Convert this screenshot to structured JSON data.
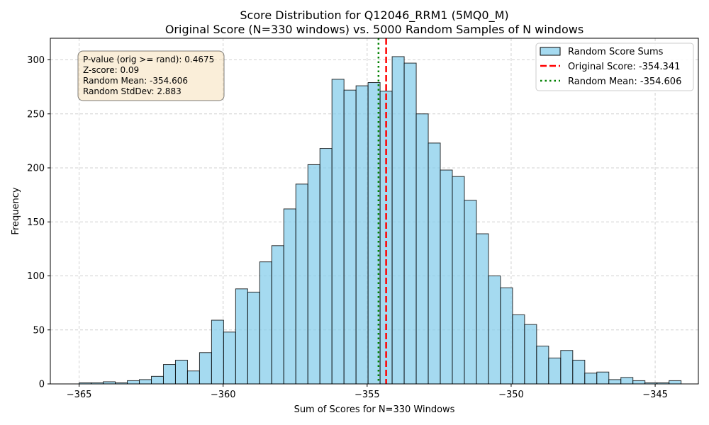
{
  "chart_data": {
    "type": "bar",
    "title": "Score Distribution for Q12046_RRM1 (5MQ0_M)",
    "subtitle": "Original Score (N=330 windows) vs. 5000 Random Samples of N windows",
    "xlabel": "Sum of Scores for N=330 Windows",
    "ylabel": "Frequency",
    "xlim": [
      -366.0,
      -343.5
    ],
    "ylim": [
      0,
      320
    ],
    "xticks": [
      -365,
      -360,
      -355,
      -350,
      -345
    ],
    "xtick_labels": [
      "−365",
      "−360",
      "−355",
      "−350",
      "−345"
    ],
    "yticks": [
      0,
      50,
      100,
      150,
      200,
      250,
      300
    ],
    "ytick_labels": [
      "0",
      "50",
      "100",
      "150",
      "200",
      "250",
      "300"
    ],
    "grid": true,
    "legend_position": "top-right",
    "bin_start": -365.0,
    "bin_width": 0.418,
    "counts": [
      1,
      1,
      2,
      1,
      3,
      4,
      7,
      18,
      22,
      12,
      29,
      59,
      48,
      88,
      85,
      113,
      128,
      162,
      185,
      203,
      218,
      282,
      272,
      276,
      279,
      271,
      303,
      297,
      250,
      223,
      198,
      192,
      170,
      139,
      100,
      89,
      64,
      55,
      35,
      24,
      31,
      22,
      10,
      11,
      4,
      6,
      3,
      1,
      1,
      3
    ],
    "series": [
      {
        "name": "Random Score Sums",
        "kind": "histogram",
        "color": "#87CEEB"
      },
      {
        "name": "Original Score: -354.341",
        "kind": "vline",
        "x": -354.341,
        "color": "#FF0000",
        "style": "dashed"
      },
      {
        "name": "Random Mean: -354.606",
        "kind": "vline",
        "x": -354.606,
        "color": "#008000",
        "style": "dotted"
      }
    ],
    "annotation": {
      "lines": [
        "P-value (orig >= rand): 0.4675",
        "Z-score: 0.09",
        "Random Mean: -354.606",
        "Random StdDev: 2.883"
      ]
    }
  }
}
